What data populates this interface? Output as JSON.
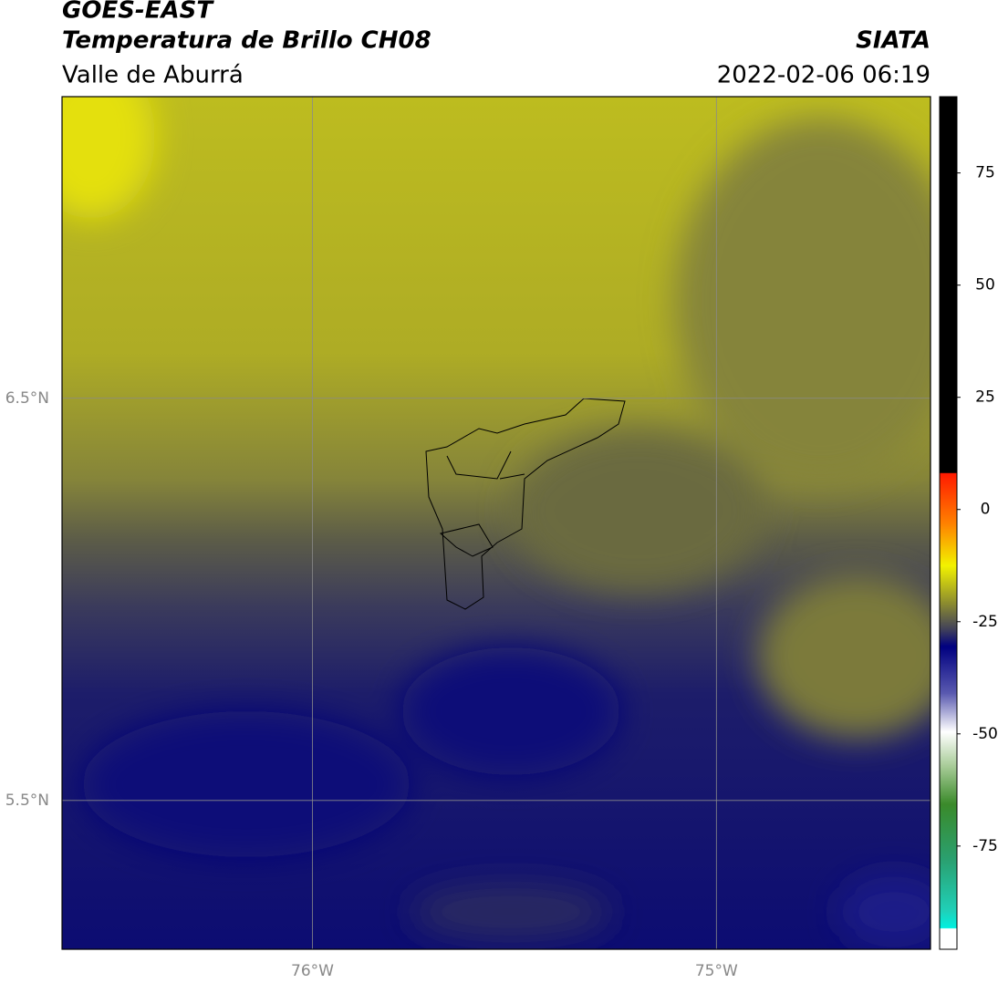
{
  "header": {
    "title": "GOES-EAST",
    "subtitle": "Temperatura de Brillo CH08",
    "region": "Valle de Aburrá",
    "source": "SIATA",
    "timestamp": "2022-02-06 06:19"
  },
  "map": {
    "xlim": [
      -76.62,
      -74.47
    ],
    "ylim": [
      5.13,
      7.25
    ],
    "xticks": [
      {
        "value": -76,
        "label": "76°W"
      },
      {
        "value": -75,
        "label": "75°W"
      }
    ],
    "yticks": [
      {
        "value": 5.5,
        "label": "5.5°N"
      },
      {
        "value": 6.5,
        "label": "6.5°N"
      }
    ],
    "grid": true
  },
  "colorbar": {
    "lim": [
      -98,
      92
    ],
    "ticks": [
      -75,
      -50,
      -25,
      0,
      25,
      50,
      75
    ]
  }
}
